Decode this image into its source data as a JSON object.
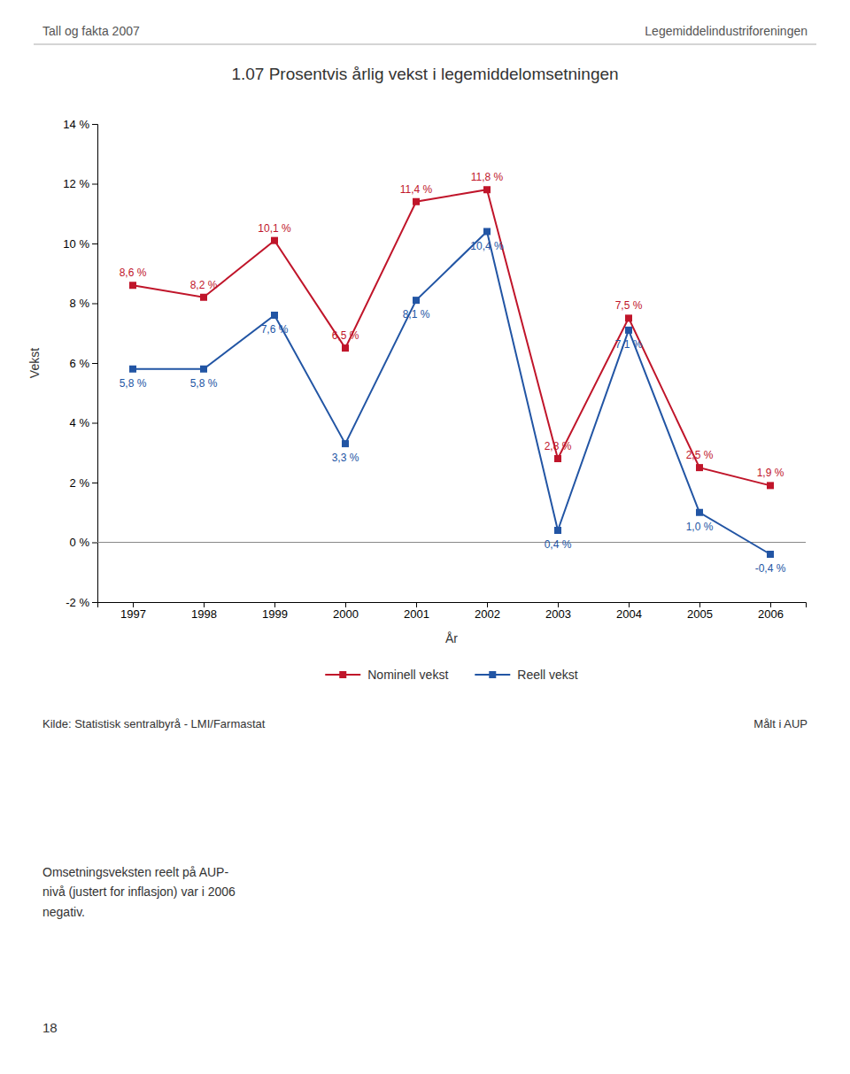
{
  "chart_data": {
    "type": "line",
    "title": "1.07 Prosentvis årlig vekst i legemiddelomsetningen",
    "annotations": [
      "Tall og fakta 2007",
      "Legemiddelindustriforeningen",
      "Kilde: Statistisk sentralbyrå - LMI/Farmastat",
      "Målt i AUP",
      "Omsetningsveksten reelt på AUP-\nnivå (justert for inflasjon) var i 2006\nnegativ.",
      "18"
    ],
    "xlabel": "År",
    "ylabel": "Vekst",
    "x": [
      1997,
      1998,
      1999,
      2000,
      2001,
      2002,
      2003,
      2004,
      2005,
      2006
    ],
    "xlim": [
      1996.5,
      2006.5
    ],
    "xticks": [
      1997,
      1998,
      1999,
      2000,
      2001,
      2002,
      2003,
      2004,
      2005,
      2006
    ],
    "ylim": [
      -2,
      14
    ],
    "yticks": [
      {
        "value": -2,
        "label": "-2 %"
      },
      {
        "value": 0,
        "label": "0 %"
      },
      {
        "value": 2,
        "label": "2 %"
      },
      {
        "value": 4,
        "label": "4 %"
      },
      {
        "value": 6,
        "label": "6 %"
      },
      {
        "value": 8,
        "label": "8 %"
      },
      {
        "value": 10,
        "label": "10 %"
      },
      {
        "value": 12,
        "label": "12 %"
      },
      {
        "value": 14,
        "label": "14 %"
      }
    ],
    "series": [
      {
        "name": "Nominell vekst",
        "color": "#c0152a",
        "marker": "square",
        "values": [
          8.6,
          8.2,
          10.1,
          6.5,
          11.4,
          11.8,
          2.8,
          7.5,
          2.5,
          1.9
        ],
        "value_labels": [
          "8,6 %",
          "8,2 %",
          "10,1 %",
          "6,5 %",
          "11,4 %",
          "11,8 %",
          "2,8 %",
          "7,5 %",
          "2,5 %",
          "1,9 %"
        ]
      },
      {
        "name": "Reell vekst",
        "color": "#2255a4",
        "marker": "square",
        "values": [
          5.8,
          5.8,
          7.6,
          3.3,
          8.1,
          10.4,
          0.4,
          7.1,
          1.0,
          -0.4
        ],
        "value_labels": [
          "5,8 %",
          "5,8 %",
          "7,6 %",
          "3,3 %",
          "8,1 %",
          "10,4 %",
          "0,4 %",
          "7,1 %",
          "1,0 %",
          "-0,4 %"
        ]
      }
    ],
    "data_labels": true,
    "grid": false,
    "legend": "bottom"
  }
}
